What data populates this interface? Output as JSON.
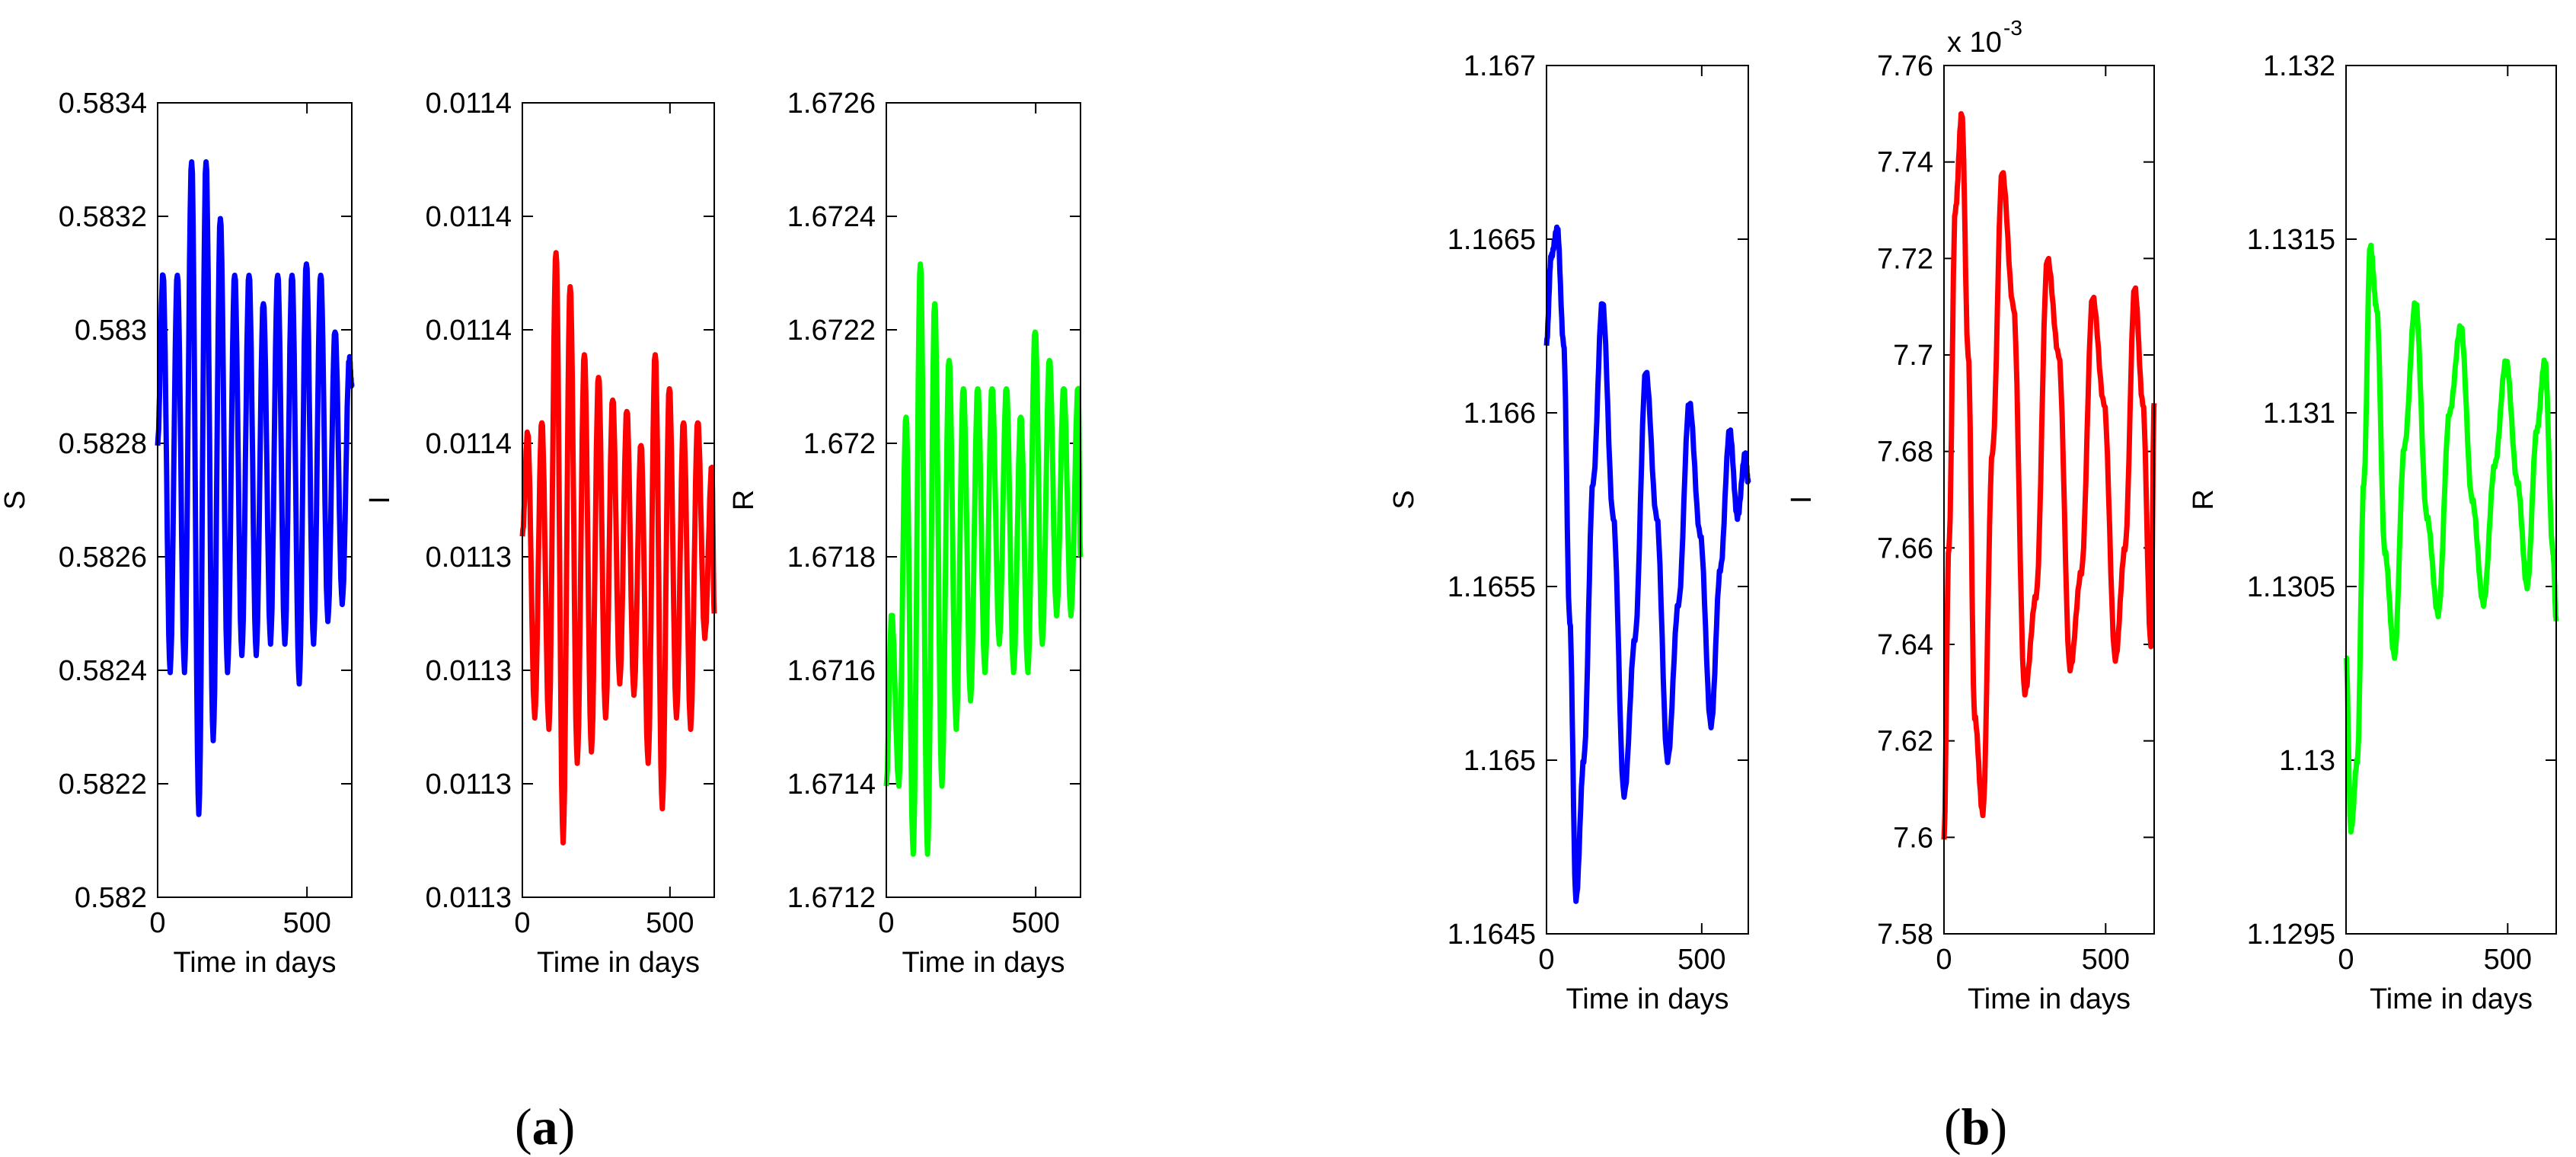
{
  "captions": {
    "a": "a",
    "b": "b"
  },
  "chart_data": [
    {
      "panel": "a",
      "type": "line",
      "color": "#0000ff",
      "xlabel": "Time in days",
      "ylabel": "S",
      "xlim": [
        0,
        650
      ],
      "ylim": [
        0.582,
        0.5834
      ],
      "xticks": [
        0,
        500
      ],
      "xtick_labels": [
        "0",
        "500"
      ],
      "yticks": [
        0.582,
        0.5822,
        0.5824,
        0.5826,
        0.5828,
        0.583,
        0.5832,
        0.5834
      ],
      "ytick_labels": [
        "0.582",
        "0.5822",
        "0.5824",
        "0.5826",
        "0.5828",
        "0.583",
        "0.5832",
        "0.5834"
      ],
      "x": [
        0,
        18,
        42,
        66,
        90,
        114,
        138,
        162,
        186,
        210,
        234,
        258,
        282,
        306,
        330,
        354,
        378,
        402,
        426,
        450,
        474,
        498,
        522,
        546,
        570,
        594,
        618,
        642,
        650
      ],
      "y": [
        0.5828,
        0.5831,
        0.5824,
        0.5831,
        0.5824,
        0.5833,
        0.58215,
        0.5833,
        0.58228,
        0.5832,
        0.5824,
        0.5831,
        0.58243,
        0.5831,
        0.58243,
        0.58305,
        0.58245,
        0.5831,
        0.58245,
        0.5831,
        0.58238,
        0.58312,
        0.58245,
        0.5831,
        0.58249,
        0.583,
        0.58252,
        0.58295,
        0.5829
      ]
    },
    {
      "panel": "a",
      "type": "line",
      "color": "#ff0000",
      "xlabel": "Time in days",
      "ylabel": "I",
      "xlim": [
        0,
        650
      ],
      "ylim": [
        0.0113,
        0.0114
      ],
      "xticks": [
        0,
        500
      ],
      "xtick_labels": [
        "0",
        "500"
      ],
      "yticks": [
        0,
        1,
        2,
        3,
        4,
        5,
        6,
        7
      ],
      "ytick_labels": [
        "0.0113",
        "0.0113",
        "0.0113",
        "0.0113",
        "0.0114",
        "0.0114",
        "0.0114",
        "0.0114"
      ],
      "note": "y values are in displayed-tick units (0 = bottom tick, 7 = top tick) because the printed labels are rounded duplicates",
      "x": [
        0,
        18,
        42,
        66,
        90,
        114,
        138,
        162,
        186,
        210,
        234,
        258,
        282,
        306,
        330,
        354,
        378,
        402,
        426,
        450,
        474,
        498,
        522,
        546,
        570,
        594,
        618,
        642,
        650
      ],
      "y": [
        3.2,
        4.1,
        1.6,
        4.2,
        1.5,
        5.7,
        0.5,
        5.4,
        1.2,
        4.8,
        1.3,
        4.6,
        1.6,
        4.4,
        1.9,
        4.3,
        1.8,
        4.0,
        1.2,
        4.8,
        0.8,
        4.5,
        1.6,
        4.2,
        1.5,
        4.2,
        2.3,
        3.8,
        2.5
      ]
    },
    {
      "panel": "a",
      "type": "line",
      "color": "#00ff00",
      "xlabel": "Time in days",
      "ylabel": "R",
      "xlim": [
        0,
        650
      ],
      "ylim": [
        1.6712,
        1.6726
      ],
      "xticks": [
        0,
        500
      ],
      "xtick_labels": [
        "0",
        "500"
      ],
      "yticks": [
        1.6712,
        1.6714,
        1.6716,
        1.6718,
        1.672,
        1.6722,
        1.6724,
        1.6726
      ],
      "ytick_labels": [
        "1.6712",
        "1.6714",
        "1.6716",
        "1.6718",
        "1.672",
        "1.6722",
        "1.6724",
        "1.6726"
      ],
      "x": [
        0,
        18,
        42,
        66,
        90,
        114,
        138,
        162,
        186,
        210,
        234,
        258,
        282,
        306,
        330,
        354,
        378,
        402,
        426,
        450,
        474,
        498,
        522,
        546,
        570,
        594,
        618,
        642,
        650
      ],
      "y": [
        1.6714,
        1.6717,
        1.6714,
        1.67205,
        1.67128,
        1.67232,
        1.67128,
        1.67225,
        1.6714,
        1.67215,
        1.6715,
        1.6721,
        1.67155,
        1.6721,
        1.6716,
        1.6721,
        1.67165,
        1.6721,
        1.6716,
        1.67205,
        1.6716,
        1.6722,
        1.67165,
        1.67215,
        1.6717,
        1.6721,
        1.6717,
        1.6721,
        1.6718
      ]
    },
    {
      "panel": "b",
      "type": "line",
      "color": "#0000ff",
      "xlabel": "Time in days",
      "ylabel": "S",
      "xlim": [
        0,
        650
      ],
      "ylim": [
        1.1645,
        1.167
      ],
      "xticks": [
        0,
        500
      ],
      "xtick_labels": [
        "0",
        "500"
      ],
      "yticks": [
        1.1645,
        1.165,
        1.1655,
        1.166,
        1.1665,
        1.167
      ],
      "ytick_labels": [
        "1.1645",
        "1.165",
        "1.1655",
        "1.166",
        "1.1665",
        "1.167"
      ],
      "x": [
        0,
        15,
        35,
        55,
        75,
        95,
        120,
        150,
        180,
        215,
        250,
        285,
        320,
        355,
        390,
        425,
        460,
        495,
        530,
        560,
        590,
        615,
        640,
        650
      ],
      "y": [
        1.1662,
        1.16645,
        1.16653,
        1.1662,
        1.1654,
        1.1646,
        1.165,
        1.1658,
        1.16632,
        1.1657,
        1.1649,
        1.16535,
        1.16612,
        1.1657,
        1.165,
        1.16545,
        1.16603,
        1.16565,
        1.1651,
        1.16555,
        1.16595,
        1.1657,
        1.16588,
        1.1658
      ]
    },
    {
      "panel": "b",
      "type": "line",
      "color": "#ff0000",
      "xlabel": "Time in days",
      "ylabel": "I",
      "xlim": [
        0,
        650
      ],
      "ylim": [
        7.58,
        7.76
      ],
      "y_multiplier_label": "x 10",
      "y_multiplier_exponent": "-3",
      "xticks": [
        0,
        500
      ],
      "xtick_labels": [
        "0",
        "500"
      ],
      "yticks": [
        7.58,
        7.6,
        7.62,
        7.64,
        7.66,
        7.68,
        7.7,
        7.72,
        7.74,
        7.76
      ],
      "ytick_labels": [
        "7.58",
        "7.6",
        "7.62",
        "7.64",
        "7.66",
        "7.68",
        "7.7",
        "7.72",
        "7.74",
        "7.76"
      ],
      "x": [
        0,
        15,
        35,
        55,
        75,
        95,
        120,
        150,
        180,
        215,
        250,
        285,
        320,
        355,
        390,
        425,
        460,
        495,
        530,
        560,
        590,
        615,
        640,
        650
      ],
      "y": [
        7.6,
        7.66,
        7.73,
        7.75,
        7.7,
        7.625,
        7.605,
        7.68,
        7.738,
        7.71,
        7.63,
        7.65,
        7.72,
        7.7,
        7.635,
        7.655,
        7.712,
        7.69,
        7.637,
        7.66,
        7.714,
        7.69,
        7.64,
        7.69
      ]
    },
    {
      "panel": "b",
      "type": "line",
      "color": "#00ff00",
      "xlabel": "Time in days",
      "ylabel": "R",
      "xlim": [
        0,
        650
      ],
      "ylim": [
        1.1295,
        1.132
      ],
      "xticks": [
        0,
        500
      ],
      "xtick_labels": [
        "0",
        "500"
      ],
      "yticks": [
        1.1295,
        1.13,
        1.1305,
        1.131,
        1.1315,
        1.132
      ],
      "ytick_labels": [
        "1.1295",
        "1.13",
        "1.1305",
        "1.131",
        "1.1315",
        "1.132"
      ],
      "x": [
        0,
        15,
        35,
        55,
        75,
        95,
        120,
        150,
        180,
        215,
        250,
        285,
        320,
        355,
        390,
        425,
        460,
        495,
        530,
        560,
        590,
        615,
        640,
        650
      ],
      "y": [
        1.1303,
        1.1298,
        1.13,
        1.1308,
        1.13148,
        1.1313,
        1.1306,
        1.1303,
        1.1309,
        1.13132,
        1.1307,
        1.13042,
        1.131,
        1.13125,
        1.13075,
        1.13045,
        1.13085,
        1.13115,
        1.1308,
        1.1305,
        1.13095,
        1.13115,
        1.1306,
        1.1304
      ]
    }
  ]
}
